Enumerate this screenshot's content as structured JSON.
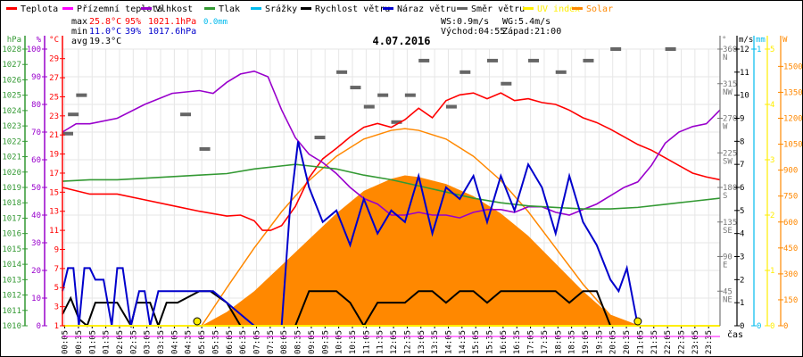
{
  "legend": [
    {
      "label": "Teplota",
      "color": "#ff0000"
    },
    {
      "label": "Přízemní teplota",
      "color": "#ff00ff"
    },
    {
      "label": "Vlhkost",
      "color": "#9900cc"
    },
    {
      "label": "Tlak",
      "color": "#339933"
    },
    {
      "label": "Srážky",
      "color": "#00bbee"
    },
    {
      "label": "Rychlost větru",
      "color": "#000000"
    },
    {
      "label": "Náraz větru",
      "color": "#0000cc"
    },
    {
      "label": "Směr větru",
      "color": "#666666"
    },
    {
      "label": "UV index",
      "color": "#ffee00"
    },
    {
      "label": "Solar",
      "color": "#ff8800"
    }
  ],
  "stats": {
    "max_label": "max",
    "min_label": "min",
    "avg_label": "avg",
    "max_temp": "25.8°C",
    "max_hum": "95%",
    "max_press": "1021.1hPa",
    "max_rain": "0.0mm",
    "min_temp": "11.0°C",
    "min_hum": "39%",
    "min_press": "1017.6hPa",
    "avg_temp": "19.3°C",
    "ws": "WS:0.9m/s",
    "wg": "WG:5.4m/s",
    "sunrise": "Východ:04:55",
    "sunset": "Západ:21:00"
  },
  "chart_data": {
    "type": "line",
    "title": "4.07.2016",
    "xlabel": "čas",
    "x_ticks": [
      "00:05",
      "00:35",
      "01:05",
      "01:35",
      "02:05",
      "02:35",
      "03:05",
      "03:35",
      "04:05",
      "04:35",
      "05:05",
      "05:35",
      "06:05",
      "06:35",
      "07:05",
      "07:35",
      "08:05",
      "08:35",
      "09:05",
      "09:35",
      "10:05",
      "10:35",
      "11:05",
      "11:35",
      "12:05",
      "12:35",
      "13:05",
      "13:35",
      "14:05",
      "14:35",
      "15:05",
      "15:35",
      "16:05",
      "16:35",
      "17:05",
      "17:35",
      "18:05",
      "18:35",
      "19:05",
      "19:35",
      "20:05",
      "20:35",
      "21:05",
      "21:35",
      "22:05",
      "22:35",
      "23:05",
      "23:35"
    ],
    "axes": {
      "pressure": {
        "unit": "hPa",
        "range": [
          1010,
          1028
        ],
        "ticks": [
          1010,
          1011,
          1012,
          1013,
          1014,
          1015,
          1016,
          1017,
          1018,
          1019,
          1020,
          1021,
          1022,
          1023,
          1024,
          1025,
          1026,
          1027,
          1028
        ]
      },
      "humidity": {
        "unit": "%",
        "range": [
          0,
          100
        ],
        "ticks": [
          0,
          10,
          20,
          30,
          40,
          50,
          60,
          70,
          80,
          90,
          100
        ]
      },
      "temperature": {
        "unit": "°C",
        "range": [
          1,
          30
        ],
        "ticks": [
          1,
          3,
          5,
          7,
          9,
          11,
          13,
          15,
          17,
          19,
          21,
          23,
          25,
          27,
          29
        ]
      },
      "wind_dir": {
        "unit": "°",
        "range": [
          0,
          360
        ],
        "ticks": [
          {
            "v": 45,
            "l": "NE"
          },
          {
            "v": 90,
            "l": "E"
          },
          {
            "v": 135,
            "l": "SE"
          },
          {
            "v": 180,
            "l": "S"
          },
          {
            "v": 225,
            "l": "SW"
          },
          {
            "v": 270,
            "l": "W"
          },
          {
            "v": 315,
            "l": "NW"
          },
          {
            "v": 360,
            "l": "N"
          }
        ]
      },
      "wind_speed": {
        "unit": "m/s",
        "range": [
          0,
          12
        ],
        "ticks": [
          0,
          1,
          2,
          3,
          4,
          5,
          6,
          7,
          8,
          9,
          10,
          11,
          12
        ]
      },
      "rain": {
        "unit": "mm",
        "range": [
          0,
          1
        ],
        "ticks": [
          0,
          1
        ]
      },
      "uv": {
        "unit": "",
        "range": [
          0,
          5
        ],
        "ticks": [
          0,
          1,
          2,
          3,
          4,
          5
        ]
      },
      "solar": {
        "unit": "W",
        "range": [
          0,
          1600
        ],
        "ticks": [
          0,
          150,
          300,
          450,
          600,
          750,
          900,
          1050,
          1200,
          1350,
          1500
        ]
      }
    },
    "series": [
      {
        "name": "Teplota",
        "axis": "temperature",
        "color": "#ff0000",
        "x": [
          0,
          1,
          2,
          3,
          4,
          5,
          6,
          6.5,
          7,
          7.3,
          7.6,
          8,
          8.5,
          9,
          9.5,
          10,
          10.5,
          11,
          11.5,
          12,
          12.5,
          13,
          13.5,
          14,
          14.5,
          15,
          15.5,
          16,
          16.5,
          17,
          17.5,
          18,
          18.5,
          19,
          19.5,
          20,
          20.5,
          21,
          21.5,
          22,
          22.5,
          23,
          23.5,
          24
        ],
        "values": [
          15.5,
          14.8,
          14.8,
          14.2,
          13.6,
          13.0,
          12.5,
          12.6,
          12.0,
          11.0,
          11.0,
          11.5,
          13.5,
          16.5,
          18.5,
          19.6,
          20.8,
          21.8,
          22.2,
          21.8,
          22.6,
          23.8,
          22.8,
          24.6,
          25.2,
          25.4,
          24.8,
          25.4,
          24.6,
          24.8,
          24.4,
          24.2,
          23.6,
          22.8,
          22.3,
          21.6,
          20.8,
          20.0,
          19.4,
          18.6,
          17.8,
          17.0,
          16.6,
          16.3
        ]
      },
      {
        "name": "Vlhkost",
        "axis": "humidity",
        "color": "#9900cc",
        "x": [
          0,
          0.5,
          1,
          2,
          3,
          4,
          5,
          5.5,
          6,
          6.5,
          7,
          7.5,
          8,
          8.5,
          9,
          9.5,
          10,
          10.5,
          11,
          11.5,
          12,
          12.5,
          13,
          13.5,
          14,
          14.5,
          15,
          15.5,
          16,
          16.5,
          17,
          17.5,
          18,
          18.5,
          19,
          19.5,
          20,
          20.5,
          21,
          21.5,
          22,
          22.5,
          23,
          23.5,
          24
        ],
        "values": [
          70,
          73,
          73,
          75,
          80,
          84,
          85,
          84,
          88,
          91,
          92,
          90,
          78,
          68,
          62,
          59,
          55,
          50,
          46,
          44,
          40,
          40,
          41,
          40,
          40,
          39,
          41,
          42,
          42,
          41,
          43,
          43,
          41,
          40,
          42,
          44,
          47,
          50,
          52,
          58,
          66,
          70,
          72,
          73,
          78
        ]
      },
      {
        "name": "Tlak",
        "axis": "pressure",
        "color": "#339933",
        "x": [
          0,
          1,
          2,
          3,
          4,
          5,
          6,
          7,
          8,
          8.5,
          9,
          10,
          11,
          12,
          13,
          14,
          15,
          16,
          17,
          18,
          19,
          20,
          21,
          22,
          23,
          24
        ],
        "values": [
          1019.4,
          1019.5,
          1019.5,
          1019.6,
          1019.7,
          1019.8,
          1019.9,
          1020.2,
          1020.4,
          1020.5,
          1020.4,
          1020.2,
          1019.8,
          1019.5,
          1019.1,
          1018.7,
          1018.3,
          1018.0,
          1017.8,
          1017.7,
          1017.6,
          1017.6,
          1017.7,
          1017.9,
          1018.1,
          1018.3
        ]
      },
      {
        "name": "Rychlost větru",
        "axis": "wind_speed",
        "color": "#000000",
        "x": [
          0,
          0.3,
          0.6,
          0.9,
          1.2,
          1.5,
          2.0,
          2.5,
          2.7,
          3.2,
          3.5,
          3.8,
          4.2,
          5.0,
          5.4,
          6.0,
          6.5,
          7.0,
          7.5,
          8.0,
          8.5,
          9.0,
          9.5,
          10.0,
          10.5,
          11.0,
          11.5,
          12.0,
          12.5,
          13.0,
          13.5,
          14.0,
          14.5,
          15.0,
          15.5,
          16.0,
          16.5,
          17.0,
          17.5,
          18.0,
          18.5,
          19.0,
          19.5,
          20.0,
          20.5,
          21.0,
          24
        ],
        "values": [
          0.5,
          1.2,
          0.3,
          0,
          1,
          1,
          1,
          0,
          1,
          1,
          0,
          1,
          1,
          1.5,
          1.5,
          1,
          0,
          0,
          0,
          0,
          0,
          1.5,
          1.5,
          1.5,
          1,
          0,
          1,
          1,
          1,
          1.5,
          1.5,
          1,
          1.5,
          1.5,
          1,
          1.5,
          1.5,
          1.5,
          1.5,
          1.5,
          1,
          1.5,
          1.5,
          0,
          0,
          0,
          0
        ]
      },
      {
        "name": "Náraz větru",
        "axis": "wind_speed",
        "color": "#0000cc",
        "x": [
          0,
          0.2,
          0.4,
          0.6,
          0.8,
          1.0,
          1.2,
          1.5,
          1.8,
          2.0,
          2.2,
          2.5,
          2.8,
          3.0,
          3.2,
          3.5,
          3.8,
          4.0,
          4.5,
          5.0,
          5.5,
          6.0,
          6.5,
          7.0,
          7.5,
          8.0,
          8.3,
          8.6,
          9.0,
          9.5,
          10.0,
          10.5,
          11.0,
          11.5,
          12.0,
          12.5,
          13.0,
          13.5,
          14.0,
          14.5,
          15.0,
          15.5,
          16.0,
          16.5,
          17.0,
          17.5,
          18.0,
          18.5,
          19.0,
          19.5,
          20.0,
          20.3,
          20.6,
          21.0,
          24
        ],
        "values": [
          1.5,
          2.5,
          2.5,
          0,
          2.5,
          2.5,
          2,
          2,
          0,
          2.5,
          2.5,
          0,
          1.5,
          1.5,
          0,
          1.5,
          1.5,
          1.5,
          1.5,
          1.5,
          1.5,
          1,
          0.5,
          0,
          0,
          0,
          5,
          8,
          6,
          4.5,
          5,
          3.5,
          5.5,
          4,
          5,
          4.5,
          6.5,
          4,
          6,
          5.5,
          6.5,
          4.5,
          6.5,
          5,
          7,
          6,
          4,
          6.5,
          4.5,
          3.5,
          2,
          1.5,
          2.5,
          0,
          0
        ]
      },
      {
        "name": "Solar",
        "axis": "solar",
        "color": "#ff8800",
        "x": [
          5.08,
          6,
          7,
          8,
          9,
          10,
          11,
          12,
          12.5,
          13,
          14,
          15,
          16,
          17,
          18,
          19,
          20,
          21
        ],
        "values": [
          0,
          80,
          200,
          350,
          500,
          650,
          780,
          850,
          870,
          860,
          820,
          750,
          650,
          520,
          360,
          200,
          60,
          0
        ]
      },
      {
        "name": "Solar (max)",
        "axis": "solar",
        "color": "#ff8800",
        "x": [
          5.08,
          6,
          7,
          8,
          9,
          10,
          11,
          12,
          12.5,
          13,
          14,
          15,
          16,
          17,
          18,
          19,
          20,
          21
        ],
        "values": [
          0,
          220,
          450,
          660,
          840,
          980,
          1080,
          1130,
          1140,
          1130,
          1080,
          980,
          840,
          660,
          450,
          240,
          60,
          0
        ]
      }
    ],
    "wind_dir_marks": [
      {
        "t": 0.0,
        "dir": 250
      },
      {
        "t": 0.2,
        "dir": 275
      },
      {
        "t": 0.5,
        "dir": 300
      },
      {
        "t": 4.3,
        "dir": 275
      },
      {
        "t": 5.0,
        "dir": 230
      },
      {
        "t": 9.2,
        "dir": 245
      },
      {
        "t": 10.0,
        "dir": 330
      },
      {
        "t": 10.5,
        "dir": 310
      },
      {
        "t": 11.0,
        "dir": 285
      },
      {
        "t": 11.5,
        "dir": 300
      },
      {
        "t": 12.0,
        "dir": 265
      },
      {
        "t": 12.5,
        "dir": 300
      },
      {
        "t": 13.0,
        "dir": 345
      },
      {
        "t": 14.0,
        "dir": 285
      },
      {
        "t": 14.5,
        "dir": 330
      },
      {
        "t": 15.5,
        "dir": 345
      },
      {
        "t": 16.0,
        "dir": 315
      },
      {
        "t": 17.0,
        "dir": 345
      },
      {
        "t": 18.0,
        "dir": 330
      },
      {
        "t": 19.0,
        "dir": 345
      },
      {
        "t": 20.0,
        "dir": 360
      },
      {
        "t": 22.0,
        "dir": 360
      }
    ],
    "sun_markers": [
      "04:55",
      "21:00"
    ]
  }
}
